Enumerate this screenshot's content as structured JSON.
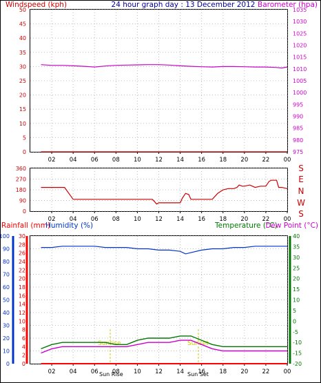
{
  "header": {
    "left_label": "Windspeed (kph)",
    "center_label": "24 hour graph day : 13 December 2012",
    "right_label": "Barometer (hpa)"
  },
  "direction_labels": [
    "S",
    "E",
    "N",
    "W",
    "S"
  ],
  "bottom_header": {
    "rain_label": "Rainfall (mm)",
    "humidity_label": "Humidity (%)",
    "temp_label": "Temperature (°C)",
    "dew_label": "Dew Point (°C)"
  },
  "annotations": {
    "sunrise": "Sunrise",
    "sunset": "Sunset",
    "sun_rise_time": "Sun Rise",
    "sun_set_time": "Sun Set"
  },
  "colors": {
    "wind": "#cc0000",
    "barometer": "#cc00cc",
    "title": "#000099",
    "direction": "#cc0000",
    "humidity": "#0033cc",
    "temperature": "#007700",
    "dewpoint": "#cc00cc",
    "rain": "#ff0000",
    "annotation": "#cccc00"
  },
  "chart_data": [
    {
      "type": "line",
      "name": "wind-barometer",
      "x_ticks": [
        "02",
        "04",
        "06",
        "08",
        "10",
        "12",
        "14",
        "16",
        "18",
        "20",
        "22",
        "00"
      ],
      "ylabel": "Windspeed (kph)",
      "ylim": [
        0,
        50
      ],
      "y_ticks": [
        0,
        5,
        10,
        15,
        20,
        25,
        30,
        35,
        40,
        45,
        50
      ],
      "y2label": "Barometer (hpa)",
      "y2lim": [
        975,
        1035
      ],
      "y2_ticks": [
        975,
        980,
        985,
        990,
        995,
        1000,
        1005,
        1010,
        1015,
        1020,
        1025,
        1030,
        1035
      ],
      "grid": true,
      "series": [
        {
          "name": "Windspeed (kph)",
          "axis": "left",
          "x": [
            1,
            24
          ],
          "values": [
            0,
            0
          ]
        },
        {
          "name": "Barometer (hpa)",
          "axis": "right",
          "x": [
            1,
            2,
            3,
            4,
            5,
            6,
            7,
            8,
            9,
            10,
            11,
            12,
            13,
            14,
            15,
            16,
            17,
            18,
            19,
            20,
            21,
            22,
            23,
            23.5,
            24
          ],
          "values": [
            1011.8,
            1011.5,
            1011.5,
            1011.3,
            1011.1,
            1010.8,
            1011.2,
            1011.5,
            1011.6,
            1011.7,
            1011.8,
            1011.8,
            1011.6,
            1011.3,
            1011.1,
            1010.9,
            1010.8,
            1011.0,
            1011.0,
            1010.9,
            1010.8,
            1010.8,
            1010.6,
            1010.4,
            1010.8
          ]
        }
      ]
    },
    {
      "type": "line",
      "name": "wind-direction",
      "x_ticks": [
        "02",
        "04",
        "06",
        "08",
        "10",
        "12",
        "14",
        "16",
        "18",
        "20",
        "22",
        "00"
      ],
      "ylim": [
        0,
        360
      ],
      "y_ticks": [
        0,
        90,
        180,
        270,
        360
      ],
      "grid": true,
      "series": [
        {
          "name": "Wind direction",
          "x": [
            1,
            2.5,
            3.2,
            4,
            6,
            8,
            10,
            11.4,
            11.6,
            11.8,
            12,
            14,
            14.2,
            14.5,
            14.8,
            15,
            16,
            17,
            17.5,
            18,
            18.5,
            19,
            19.3,
            19.5,
            19.8,
            20,
            20.5,
            21,
            21.5,
            22,
            22.3,
            22.5,
            22.8,
            23,
            23.2,
            23.5,
            24
          ],
          "values": [
            200,
            200,
            200,
            100,
            100,
            100,
            100,
            100,
            80,
            60,
            70,
            70,
            110,
            150,
            140,
            100,
            100,
            100,
            150,
            180,
            190,
            190,
            200,
            220,
            210,
            210,
            220,
            200,
            210,
            210,
            250,
            260,
            260,
            260,
            200,
            200,
            190
          ]
        }
      ]
    },
    {
      "type": "line",
      "name": "temperature-humidity-rain",
      "x_ticks": [
        "02",
        "04",
        "06",
        "08",
        "10",
        "12",
        "14",
        "16",
        "18",
        "20",
        "22",
        "00"
      ],
      "rain_lim": [
        0,
        30
      ],
      "rain_ticks": [
        0,
        2,
        4,
        6,
        8,
        10,
        12,
        14,
        16,
        18,
        20,
        22,
        24,
        26,
        28,
        30
      ],
      "humidity_lim": [
        0,
        100
      ],
      "humidity_ticks": [
        0,
        10,
        20,
        30,
        40,
        50,
        60,
        70,
        80,
        90,
        100
      ],
      "temp_lim": [
        -20,
        40
      ],
      "temp_ticks": [
        -20,
        -15,
        -10,
        -5,
        0,
        5,
        10,
        15,
        20,
        25,
        30,
        35,
        40
      ],
      "grid": true,
      "series": [
        {
          "name": "Humidity (%)",
          "axis": "humidity",
          "x": [
            1,
            2,
            3,
            4,
            5,
            6,
            7,
            8,
            9,
            10,
            11,
            12,
            13,
            14,
            14.5,
            15,
            16,
            17,
            18,
            19,
            20,
            21,
            22,
            23,
            24
          ],
          "values": [
            91,
            91,
            92,
            92,
            92,
            92,
            91,
            91,
            91,
            90,
            90,
            89,
            89,
            88,
            86,
            87,
            89,
            90,
            90,
            91,
            91,
            92,
            92,
            92,
            92
          ]
        },
        {
          "name": "Temperature (°C)",
          "axis": "temp",
          "x": [
            1,
            2,
            3,
            4,
            5,
            6,
            7,
            8,
            9,
            10,
            11,
            12,
            13,
            14,
            15,
            16,
            17,
            18,
            19,
            20,
            21,
            22,
            23,
            24
          ],
          "values": [
            -13,
            -11,
            -10,
            -10,
            -10,
            -10,
            -10,
            -11,
            -11,
            -9,
            -8,
            -8,
            -8,
            -7,
            -7,
            -9,
            -11,
            -12,
            -12,
            -12,
            -12,
            -12,
            -12,
            -12
          ]
        },
        {
          "name": "Dew Point (°C)",
          "axis": "temp",
          "x": [
            1,
            2,
            3,
            4,
            5,
            6,
            7,
            8,
            9,
            10,
            11,
            12,
            13,
            14,
            15,
            16,
            17,
            18,
            19,
            20,
            21,
            22,
            23,
            24
          ],
          "values": [
            -15,
            -13,
            -12,
            -12,
            -12,
            -12,
            -12,
            -12,
            -12,
            -11,
            -10,
            -10,
            -10,
            -9,
            -9,
            -11,
            -13,
            -14,
            -14,
            -14,
            -14,
            -14,
            -14,
            -14
          ]
        },
        {
          "name": "Rainfall (mm)",
          "axis": "rain",
          "x": [
            1,
            24
          ],
          "values": [
            0,
            0
          ]
        }
      ]
    }
  ]
}
